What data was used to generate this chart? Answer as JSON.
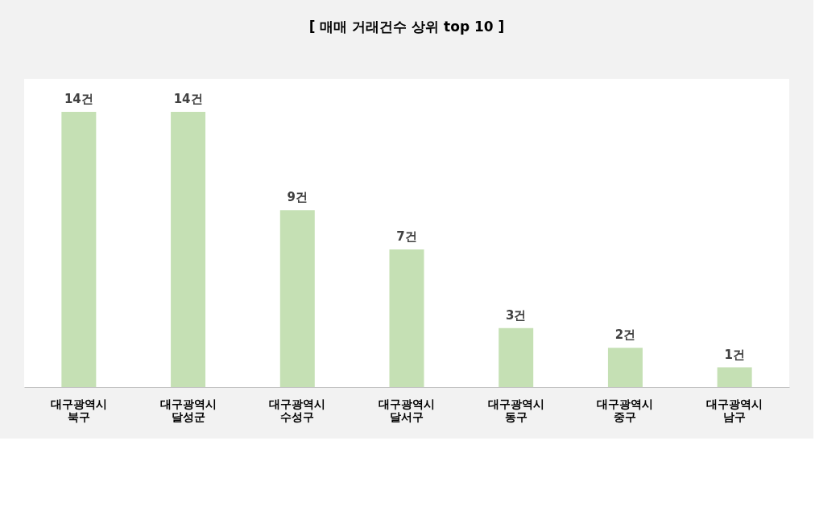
{
  "chart_data": {
    "type": "bar",
    "title": "[ 매매 거래건수 상위 top 10 ]",
    "categories": [
      "대구광역시 북구",
      "대구광역시 달성군",
      "대구광역시 수성구",
      "대구광역시 달서구",
      "대구광역시 동구",
      "대구광역시 중구",
      "대구광역시 남구"
    ],
    "values": [
      14,
      14,
      9,
      7,
      3,
      2,
      1
    ],
    "color": "#c5e0b4",
    "value_labels": [
      "14건",
      "14건",
      "9건",
      "7건",
      "3건",
      "2건",
      "1건"
    ],
    "grid": false
  }
}
